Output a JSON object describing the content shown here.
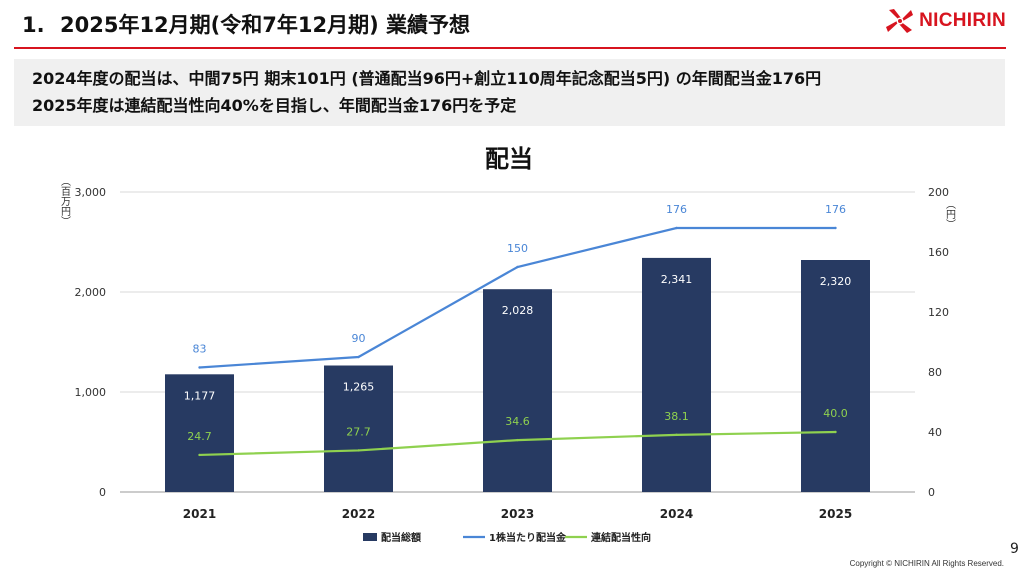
{
  "header": {
    "number": "1.",
    "title": "2025年12月期(令和7年12月期) 業績予想",
    "logo_text": "NICHIRIN"
  },
  "summary": {
    "line1": "2024年度の配当は、中間75円 期末101円 (普通配当96円+創立110周年記念配当5円) の年間配当金176円",
    "line2": "2025年度は連結配当性向40%を目指し、年間配当金176円を予定"
  },
  "chart_data": {
    "type": "bar",
    "title": "配当",
    "categories": [
      "2021",
      "2022",
      "2023",
      "2024",
      "2025"
    ],
    "y_left": {
      "unit": "（百万円）",
      "ticks": [
        "3,000",
        "2,000",
        "1,000",
        "0"
      ],
      "range": [
        0,
        3000
      ]
    },
    "y_right": {
      "unit": "（円）",
      "ticks": [
        "200",
        "160",
        "120",
        "80",
        "40",
        "0"
      ],
      "range": [
        0,
        200
      ]
    },
    "series": [
      {
        "name": "配当総額",
        "kind": "bar",
        "axis": "left",
        "color": "#273a62",
        "values": [
          1177,
          1265,
          2028,
          2341,
          2320
        ],
        "labels": [
          "1,177",
          "1,265",
          "2,028",
          "2,341",
          "2,320"
        ]
      },
      {
        "name": "1株当たり配当金",
        "kind": "line",
        "axis": "right",
        "color": "#4a86d6",
        "values": [
          83,
          90,
          150,
          176,
          176
        ],
        "labels": [
          "83",
          "90",
          "150",
          "176",
          "176"
        ]
      },
      {
        "name": "連結配当性向",
        "kind": "line",
        "axis": "right",
        "color": "#8fd14f",
        "values": [
          24.7,
          27.7,
          34.6,
          38.1,
          40.0
        ],
        "labels": [
          "24.7",
          "27.7",
          "34.6",
          "38.1",
          "40.0"
        ]
      }
    ],
    "legend_position": "bottom",
    "grid": true
  },
  "footer": {
    "page_number": "9",
    "copyright": "Copyright © NICHIRIN All Rights Reserved."
  }
}
